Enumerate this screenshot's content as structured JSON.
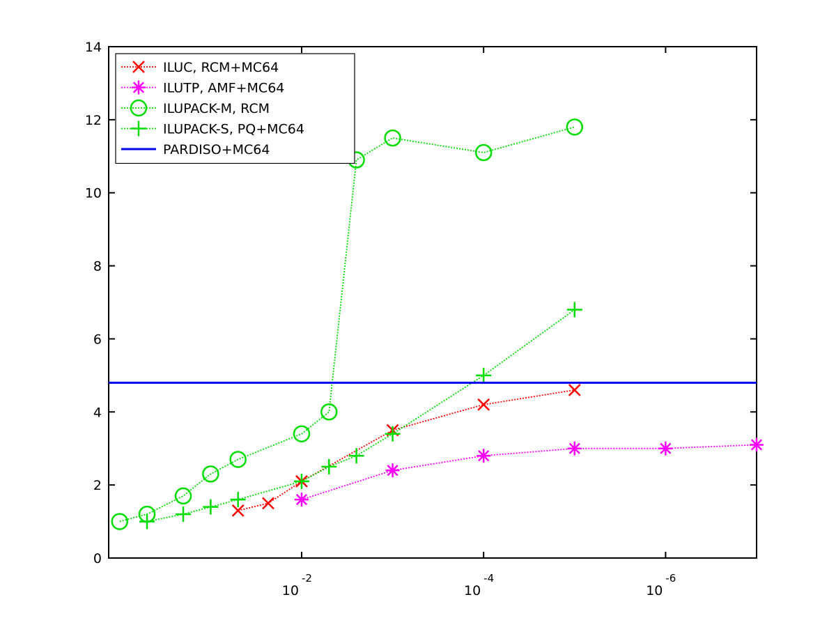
{
  "chart_data": {
    "type": "line",
    "title": "",
    "xlabel": "",
    "ylabel": "",
    "x_scale": "log",
    "x_direction": "reversed",
    "xlim": [
      1.32,
      1e-07
    ],
    "ylim": [
      0,
      14
    ],
    "y_ticks": [
      "0",
      "2",
      "4",
      "6",
      "8",
      "10",
      "12",
      "14"
    ],
    "x_ticks": [
      {
        "x": 0.01,
        "base": "10",
        "exponent": "-2"
      },
      {
        "x": 0.0001,
        "base": "10",
        "exponent": "-4"
      },
      {
        "x": 1e-06,
        "base": "10",
        "exponent": "-6"
      }
    ],
    "grid": false,
    "legend_position": "top-left",
    "series": [
      {
        "name": "ILUC, RCM+MC64",
        "color": "#ff0000",
        "marker": "x",
        "line_style": "dotted",
        "points": [
          [
            0.05,
            1.3
          ],
          [
            0.0233,
            1.5
          ],
          [
            0.01,
            2.1
          ],
          [
            0.001,
            3.5
          ],
          [
            0.0001,
            4.2
          ],
          [
            1e-05,
            4.6
          ]
        ]
      },
      {
        "name": "ILUTP, AMF+MC64",
        "color": "#ff00ff",
        "marker": "asterisk",
        "line_style": "dotted",
        "points": [
          [
            0.01,
            1.6
          ],
          [
            0.001,
            2.4
          ],
          [
            0.0001,
            2.8
          ],
          [
            1e-05,
            3.0
          ],
          [
            1e-06,
            3.0
          ],
          [
            1e-07,
            3.1
          ]
        ]
      },
      {
        "name": "ILUPACK-M, RCM",
        "color": "#00dd00",
        "marker": "circle",
        "line_style": "dotted",
        "points": [
          [
            1.0,
            1.0
          ],
          [
            0.5,
            1.2
          ],
          [
            0.2,
            1.7
          ],
          [
            0.1,
            2.3
          ],
          [
            0.05,
            2.7
          ],
          [
            0.01,
            3.4
          ],
          [
            0.005,
            4.0
          ],
          [
            0.0025,
            10.9
          ],
          [
            0.001,
            11.5
          ],
          [
            0.0001,
            11.1
          ],
          [
            1e-05,
            11.8
          ]
        ]
      },
      {
        "name": "ILUPACK-S, PQ+MC64",
        "color": "#00dd00",
        "marker": "plus",
        "line_style": "dotted",
        "points": [
          [
            0.5,
            1.0
          ],
          [
            0.2,
            1.2
          ],
          [
            0.1,
            1.4
          ],
          [
            0.05,
            1.6
          ],
          [
            0.01,
            2.1
          ],
          [
            0.005,
            2.5
          ],
          [
            0.0025,
            2.8
          ],
          [
            0.001,
            3.4
          ],
          [
            0.0001,
            5.0
          ],
          [
            1e-05,
            6.8
          ]
        ]
      },
      {
        "name": "PARDISO+MC64",
        "color": "#0000ee",
        "marker": "none",
        "line_style": "solid",
        "points": [
          [
            1.32,
            4.8
          ],
          [
            1e-07,
            4.8
          ]
        ]
      }
    ]
  }
}
